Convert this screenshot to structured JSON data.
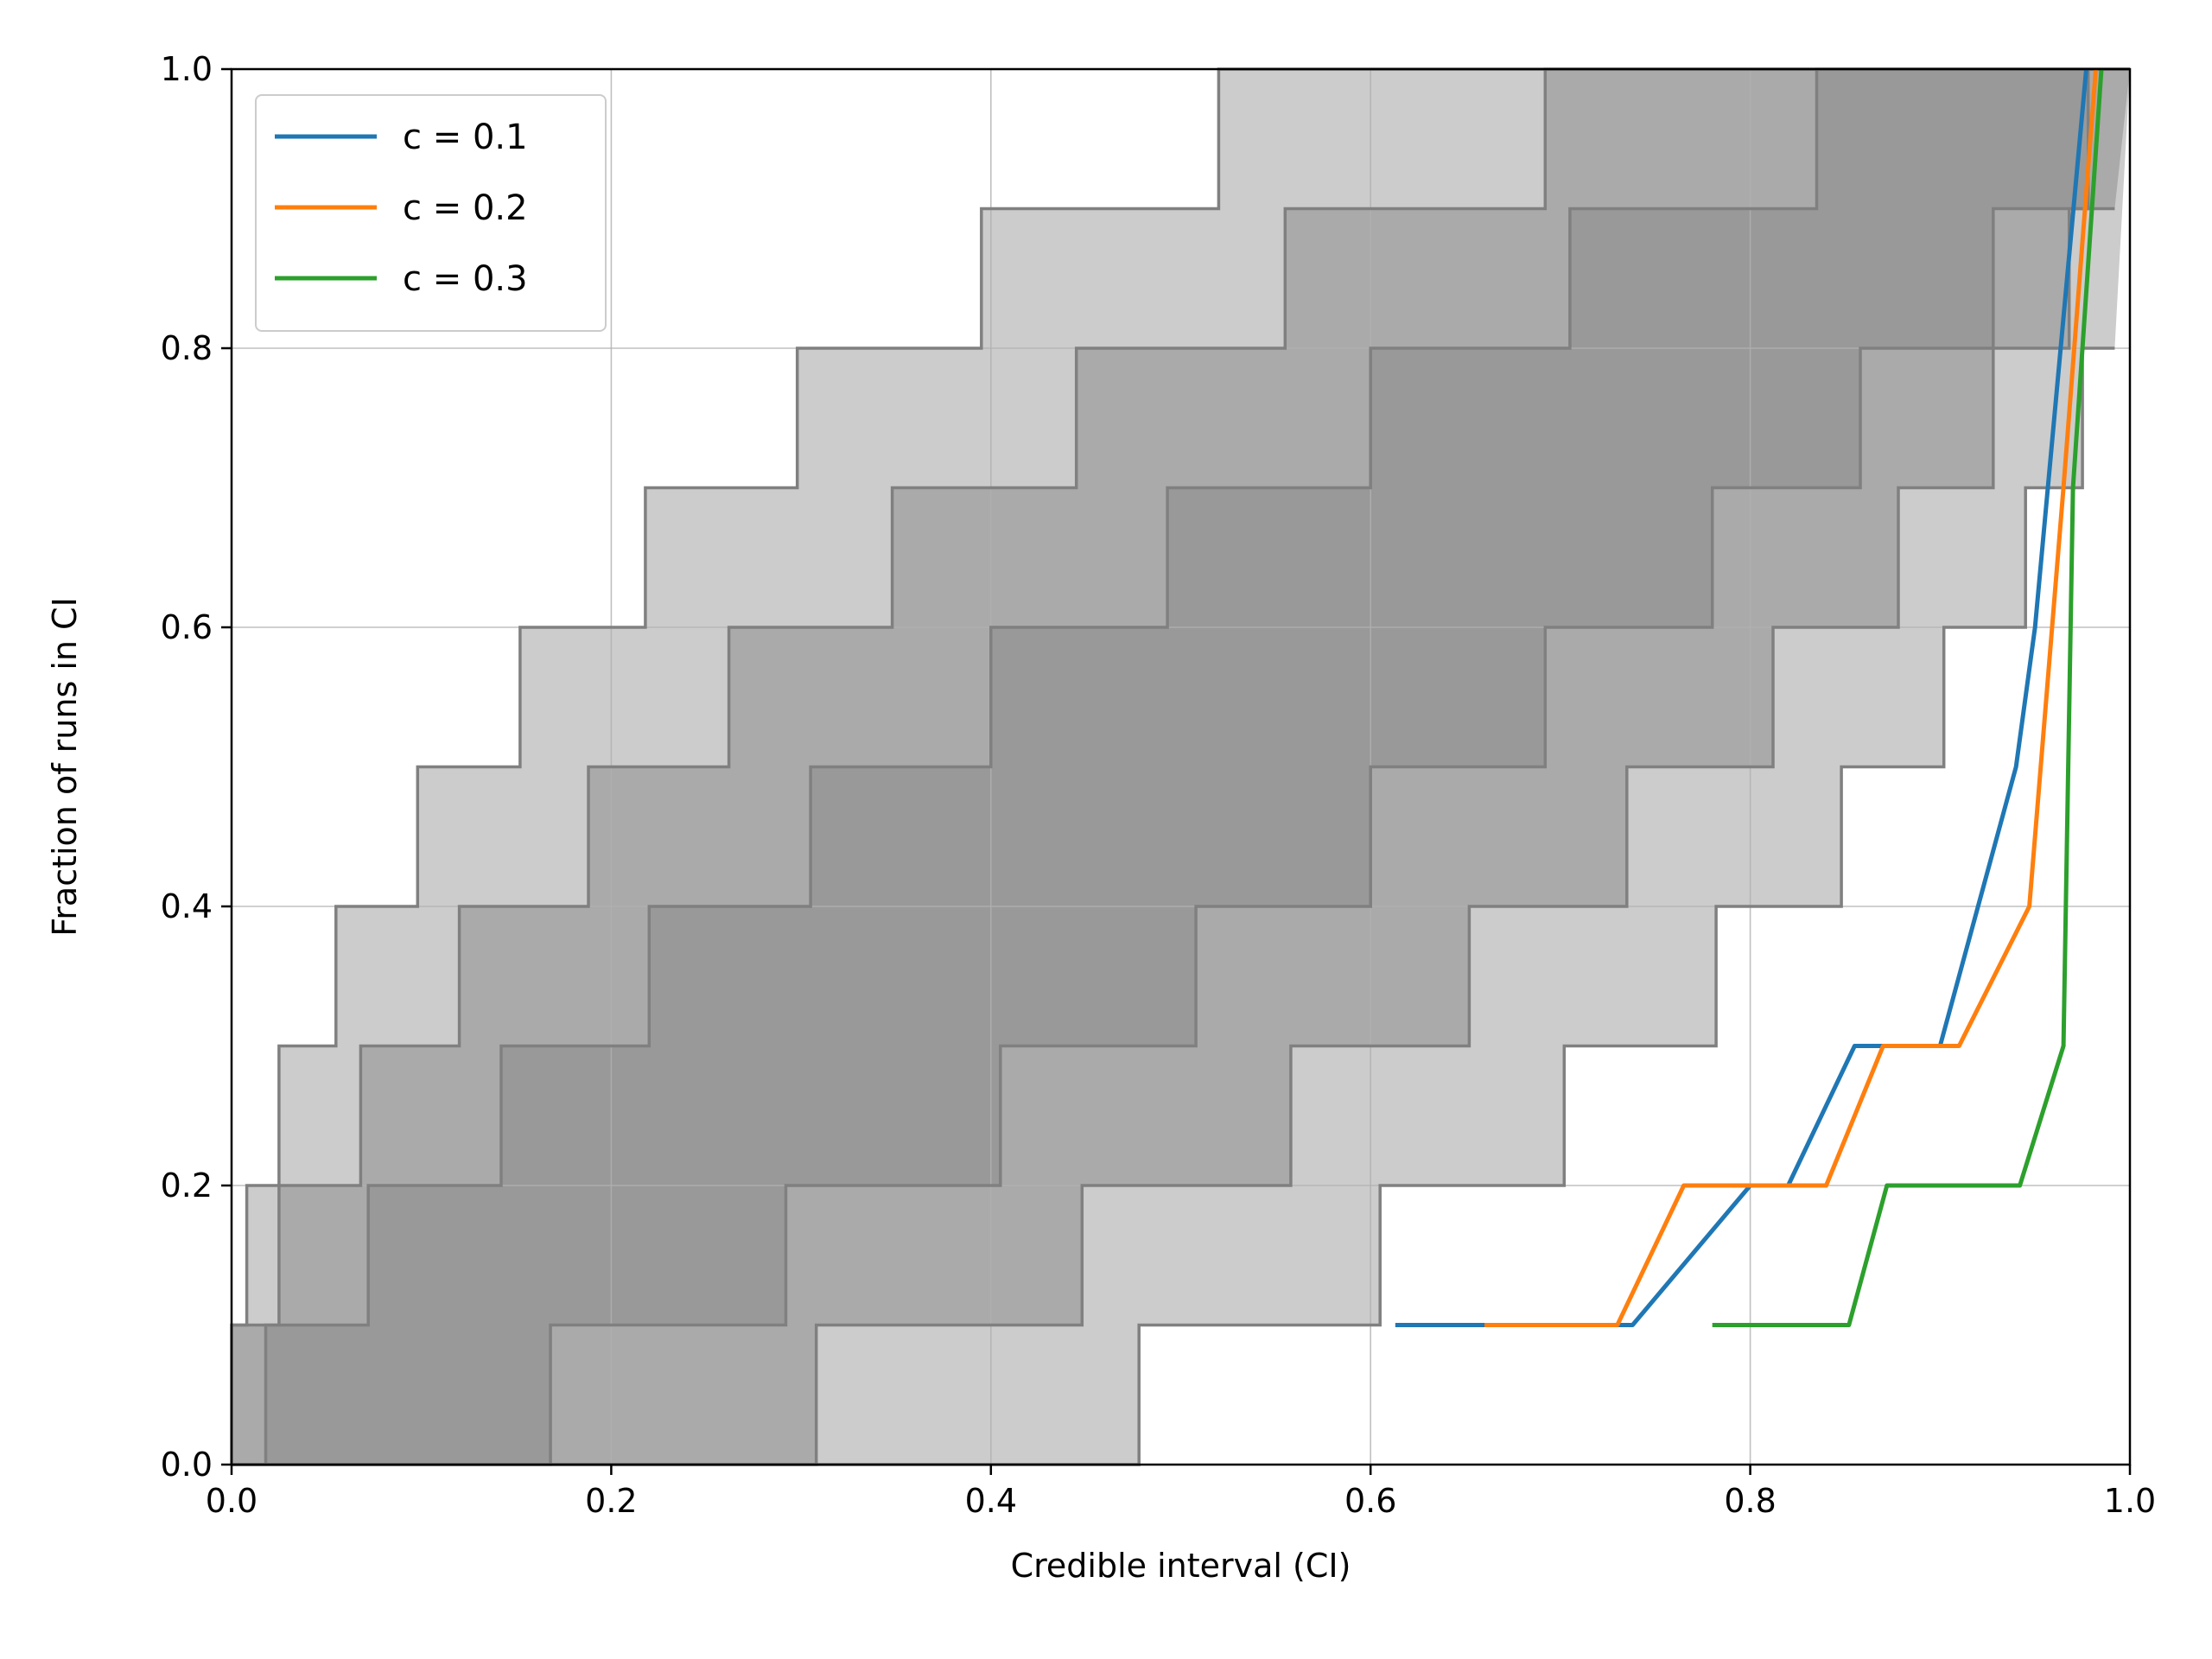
{
  "chart_data": {
    "type": "line",
    "title": "",
    "xlabel": "Credible interval (CI)",
    "ylabel": "Fraction of runs in CI",
    "xlim": [
      0.0,
      1.0
    ],
    "ylim": [
      0.0,
      1.0
    ],
    "xticks": [
      "0.0",
      "0.2",
      "0.4",
      "0.6",
      "0.8",
      "1.0"
    ],
    "yticks": [
      "0.0",
      "0.2",
      "0.4",
      "0.6",
      "0.8",
      "1.0"
    ],
    "grid": true,
    "legend_position": "upper left",
    "bands": [
      {
        "level": "outer",
        "color": "#cccccc",
        "upper": [
          [
            0.0,
            0.1
          ],
          [
            0.008,
            0.1
          ],
          [
            0.008,
            0.2
          ],
          [
            0.025,
            0.2
          ],
          [
            0.025,
            0.3
          ],
          [
            0.055,
            0.3
          ],
          [
            0.055,
            0.4
          ],
          [
            0.098,
            0.4
          ],
          [
            0.098,
            0.5
          ],
          [
            0.152,
            0.5
          ],
          [
            0.152,
            0.6
          ],
          [
            0.218,
            0.6
          ],
          [
            0.218,
            0.7
          ],
          [
            0.298,
            0.7
          ],
          [
            0.298,
            0.8
          ],
          [
            0.395,
            0.8
          ],
          [
            0.395,
            0.9
          ],
          [
            0.52,
            0.9
          ],
          [
            0.52,
            1.0
          ],
          [
            1.0,
            1.0
          ]
        ],
        "lower": [
          [
            0.0,
            0.0
          ],
          [
            0.478,
            0.0
          ],
          [
            0.478,
            0.1
          ],
          [
            0.605,
            0.1
          ],
          [
            0.605,
            0.2
          ],
          [
            0.702,
            0.2
          ],
          [
            0.702,
            0.3
          ],
          [
            0.782,
            0.3
          ],
          [
            0.782,
            0.4
          ],
          [
            0.848,
            0.4
          ],
          [
            0.848,
            0.5
          ],
          [
            0.902,
            0.5
          ],
          [
            0.902,
            0.6
          ],
          [
            0.945,
            0.6
          ],
          [
            0.945,
            0.7
          ],
          [
            0.975,
            0.7
          ],
          [
            0.975,
            0.8
          ],
          [
            0.992,
            0.8
          ]
        ]
      },
      {
        "level": "middle",
        "color": "#aaaaaa",
        "upper": [
          [
            0.0,
            0.0
          ],
          [
            0.0,
            0.1
          ],
          [
            0.025,
            0.1
          ],
          [
            0.025,
            0.2
          ],
          [
            0.068,
            0.2
          ],
          [
            0.068,
            0.3
          ],
          [
            0.12,
            0.3
          ],
          [
            0.12,
            0.4
          ],
          [
            0.188,
            0.4
          ],
          [
            0.188,
            0.5
          ],
          [
            0.262,
            0.5
          ],
          [
            0.262,
            0.6
          ],
          [
            0.348,
            0.6
          ],
          [
            0.348,
            0.7
          ],
          [
            0.445,
            0.7
          ],
          [
            0.445,
            0.8
          ],
          [
            0.555,
            0.8
          ],
          [
            0.555,
            0.9
          ],
          [
            0.692,
            0.9
          ],
          [
            0.692,
            1.0
          ],
          [
            1.0,
            1.0
          ]
        ],
        "lower": [
          [
            0.0,
            0.0
          ],
          [
            0.308,
            0.0
          ],
          [
            0.308,
            0.1
          ],
          [
            0.448,
            0.1
          ],
          [
            0.448,
            0.2
          ],
          [
            0.558,
            0.2
          ],
          [
            0.558,
            0.3
          ],
          [
            0.652,
            0.3
          ],
          [
            0.652,
            0.4
          ],
          [
            0.735,
            0.4
          ],
          [
            0.735,
            0.5
          ],
          [
            0.812,
            0.5
          ],
          [
            0.812,
            0.6
          ],
          [
            0.878,
            0.6
          ],
          [
            0.878,
            0.7
          ],
          [
            0.928,
            0.7
          ],
          [
            0.928,
            0.8
          ],
          [
            0.968,
            0.8
          ],
          [
            0.968,
            0.9
          ],
          [
            0.992,
            0.9
          ]
        ]
      },
      {
        "level": "inner",
        "color": "#999999",
        "upper": [
          [
            0.0,
            0.0
          ],
          [
            0.0,
            0.0
          ],
          [
            0.018,
            0.0
          ],
          [
            0.018,
            0.1
          ],
          [
            0.072,
            0.1
          ],
          [
            0.072,
            0.2
          ],
          [
            0.142,
            0.2
          ],
          [
            0.142,
            0.3
          ],
          [
            0.22,
            0.3
          ],
          [
            0.22,
            0.4
          ],
          [
            0.305,
            0.4
          ],
          [
            0.305,
            0.5
          ],
          [
            0.4,
            0.5
          ],
          [
            0.4,
            0.6
          ],
          [
            0.493,
            0.6
          ],
          [
            0.493,
            0.7
          ],
          [
            0.6,
            0.7
          ],
          [
            0.6,
            0.8
          ],
          [
            0.705,
            0.8
          ],
          [
            0.705,
            0.9
          ],
          [
            0.835,
            0.9
          ],
          [
            0.835,
            1.0
          ],
          [
            1.0,
            1.0
          ]
        ],
        "lower": [
          [
            0.0,
            0.0
          ],
          [
            0.168,
            0.0
          ],
          [
            0.168,
            0.1
          ],
          [
            0.292,
            0.1
          ],
          [
            0.292,
            0.2
          ],
          [
            0.405,
            0.2
          ],
          [
            0.405,
            0.3
          ],
          [
            0.508,
            0.3
          ],
          [
            0.508,
            0.4
          ],
          [
            0.6,
            0.4
          ],
          [
            0.6,
            0.5
          ],
          [
            0.692,
            0.5
          ],
          [
            0.692,
            0.6
          ],
          [
            0.78,
            0.6
          ],
          [
            0.78,
            0.7
          ],
          [
            0.858,
            0.7
          ],
          [
            0.858,
            0.8
          ],
          [
            0.928,
            0.8
          ],
          [
            0.928,
            0.9
          ],
          [
            0.978,
            0.9
          ],
          [
            0.978,
            1.0
          ]
        ]
      }
    ],
    "series": [
      {
        "name": "c = 0.1",
        "color": "#1f77b4",
        "x": [
          0.613,
          0.735,
          0.738,
          0.8,
          0.82,
          0.855,
          0.9,
          0.94,
          0.95,
          0.977
        ],
        "y": [
          0.1,
          0.1,
          0.1,
          0.2,
          0.2,
          0.3,
          0.3,
          0.5,
          0.6,
          1.0
        ]
      },
      {
        "name": "c = 0.2",
        "color": "#ff7f0e",
        "x": [
          0.66,
          0.73,
          0.765,
          0.84,
          0.87,
          0.91,
          0.947,
          0.965,
          0.982
        ],
        "y": [
          0.1,
          0.1,
          0.2,
          0.2,
          0.3,
          0.3,
          0.4,
          0.7,
          1.0
        ]
      },
      {
        "name": "c = 0.3",
        "color": "#2ca02c",
        "x": [
          0.78,
          0.852,
          0.872,
          0.942,
          0.965,
          0.97,
          0.985
        ],
        "y": [
          0.1,
          0.1,
          0.2,
          0.2,
          0.3,
          0.7,
          1.0
        ]
      }
    ]
  }
}
